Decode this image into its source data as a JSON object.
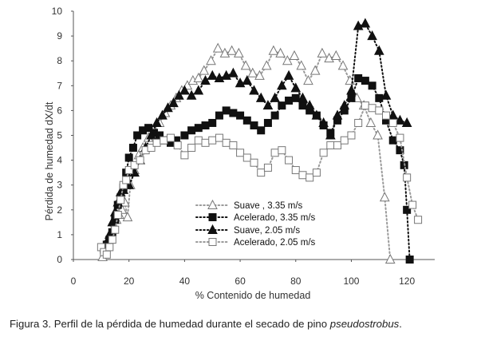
{
  "chart_data": {
    "type": "scatter",
    "title": "",
    "xlabel": "% Contenido de humedad",
    "ylabel": "Pérdida de humedad dX/dt",
    "xlim": [
      0,
      130
    ],
    "ylim": [
      0,
      10
    ],
    "xticks": [
      "0",
      "20",
      "40",
      "60",
      "80",
      "100",
      "120"
    ],
    "yticks": [
      "0",
      "1",
      "2",
      "3",
      "4",
      "5",
      "6",
      "7",
      "8",
      "9",
      "10"
    ],
    "grid": false,
    "legend_position": "center",
    "series": [
      {
        "name": "Suave , 3.35 m/s",
        "marker": "triangle-open",
        "line": "dotted",
        "x": [
          10.5,
          11.5,
          12.5,
          13.5,
          14.5,
          15.5,
          16.5,
          17.5,
          18.5,
          19.5,
          20.5,
          22,
          23.5,
          25,
          27,
          29,
          31,
          33,
          35,
          37,
          39,
          41,
          43,
          45,
          47,
          49.5,
          52,
          54.5,
          57,
          59.5,
          62,
          64.5,
          67,
          69.5,
          72,
          74.5,
          77,
          79.5,
          82,
          84.5,
          87,
          89.5,
          92,
          94.5,
          97,
          99.5,
          102,
          104.5,
          107,
          109.5,
          112,
          114
        ],
        "y": [
          0.1,
          0.3,
          0.7,
          1.0,
          1.2,
          1.6,
          1.8,
          2.0,
          2.3,
          1.7,
          3.0,
          3.6,
          4.2,
          4.5,
          4.9,
          5.2,
          5.5,
          5.9,
          6.2,
          6.5,
          6.8,
          7.0,
          7.2,
          7.3,
          7.6,
          8.0,
          8.5,
          8.3,
          8.4,
          8.3,
          7.8,
          7.5,
          7.4,
          7.8,
          8.4,
          8.3,
          8.0,
          8.2,
          7.8,
          7.2,
          7.6,
          8.3,
          8.1,
          8.2,
          7.8,
          7.2,
          6.5,
          6.2,
          5.5,
          5.0,
          2.5,
          0.0
        ]
      },
      {
        "name": "Acelerado, 3.35 m/s",
        "marker": "square-filled",
        "line": "dotted",
        "x": [
          11,
          12,
          13,
          14,
          15,
          16,
          17,
          18,
          19,
          20,
          21.5,
          23,
          25,
          27,
          29,
          31,
          33,
          35,
          37,
          40,
          42.5,
          45,
          47.5,
          50,
          52.5,
          55,
          57.5,
          60,
          62.5,
          65,
          67.5,
          70,
          72.5,
          75,
          77.5,
          80,
          82.5,
          85,
          87.5,
          90,
          92.5,
          95,
          97.5,
          100,
          102.5,
          105,
          107.5,
          110,
          112.5,
          115,
          117.5,
          119,
          120,
          121
        ],
        "y": [
          0.4,
          0.6,
          0.8,
          1.1,
          1.6,
          2.2,
          2.5,
          2.9,
          3.5,
          4.1,
          4.5,
          5.0,
          5.2,
          5.3,
          5.1,
          5.0,
          4.8,
          4.7,
          4.8,
          5.0,
          5.2,
          5.3,
          5.4,
          5.5,
          5.8,
          6.0,
          5.9,
          5.8,
          5.6,
          5.4,
          5.2,
          5.5,
          5.8,
          6.2,
          6.4,
          6.5,
          6.2,
          6.0,
          5.8,
          5.4,
          5.1,
          5.6,
          6.0,
          6.5,
          7.3,
          7.2,
          7.0,
          6.5,
          5.6,
          4.8,
          4.4,
          3.8,
          2.0,
          0.0
        ]
      },
      {
        "name": "Suave, 2.05 m/s",
        "marker": "triangle-filled",
        "line": "dotted",
        "x": [
          11,
          12,
          13,
          14,
          15,
          16,
          17,
          18,
          19,
          20,
          22,
          24,
          26,
          28,
          30,
          32,
          34,
          36,
          38,
          40,
          42.5,
          45,
          47.5,
          50,
          52.5,
          55,
          57.5,
          60,
          62.5,
          65,
          67.5,
          70,
          72.5,
          75,
          77.5,
          80,
          82.5,
          85,
          87.5,
          90,
          92.5,
          95,
          97.5,
          100,
          102.5,
          105,
          107.5,
          110,
          112.5,
          115,
          117.5,
          120
        ],
        "y": [
          0.5,
          0.7,
          1.0,
          1.5,
          1.9,
          2.3,
          2.7,
          2.8,
          3.0,
          3.0,
          3.5,
          4.0,
          4.5,
          5.0,
          5.5,
          5.8,
          6.1,
          6.3,
          6.6,
          6.8,
          6.6,
          6.8,
          7.2,
          7.4,
          7.3,
          7.4,
          7.5,
          7.1,
          7.2,
          6.8,
          6.5,
          6.2,
          6.5,
          7.0,
          7.4,
          6.9,
          6.5,
          6.2,
          5.8,
          5.5,
          5.0,
          5.8,
          6.2,
          6.8,
          9.4,
          9.5,
          9.0,
          8.4,
          6.6,
          5.8,
          5.6,
          5.5
        ]
      },
      {
        "name": "Acelerado, 2.05 m/s",
        "marker": "square-open",
        "line": "dotted",
        "x": [
          10,
          11,
          12,
          13,
          14,
          15,
          16,
          17,
          18,
          19,
          20,
          22,
          24,
          26,
          28,
          30,
          32.5,
          35,
          37.5,
          40,
          42.5,
          45,
          47.5,
          50,
          52.5,
          55,
          57.5,
          60,
          62.5,
          65,
          67.5,
          70,
          72.5,
          75,
          77.5,
          80,
          82.5,
          85,
          87.5,
          90,
          92.5,
          95,
          97.5,
          100,
          102.5,
          105,
          107.5,
          110,
          112.5,
          115,
          117.5,
          120,
          122,
          124
        ],
        "y": [
          0.5,
          0.3,
          0.2,
          0.5,
          0.8,
          1.2,
          1.8,
          2.4,
          3.0,
          3.2,
          3.6,
          3.8,
          4.0,
          4.4,
          4.5,
          4.7,
          4.8,
          4.9,
          4.6,
          4.2,
          4.5,
          4.8,
          4.7,
          4.8,
          4.9,
          4.7,
          4.6,
          4.3,
          4.1,
          3.9,
          3.5,
          3.7,
          4.3,
          4.4,
          4.0,
          3.6,
          3.4,
          3.3,
          3.5,
          4.3,
          4.6,
          4.6,
          4.8,
          5.0,
          5.5,
          6.2,
          6.1,
          6.0,
          5.8,
          5.5,
          4.9,
          3.3,
          2.2,
          1.6
        ]
      }
    ]
  },
  "caption": {
    "prefix": "Figura 3. Perfil de la pérdida de humedad durante el secado de pino ",
    "species": "pseudostrobus",
    "suffix": "."
  },
  "colors": {
    "series_line": "#9a9a9a",
    "dark_line": "#111111",
    "marker_fill": "#111111",
    "open_marker_stroke": "#777777",
    "axis": "#555555"
  }
}
